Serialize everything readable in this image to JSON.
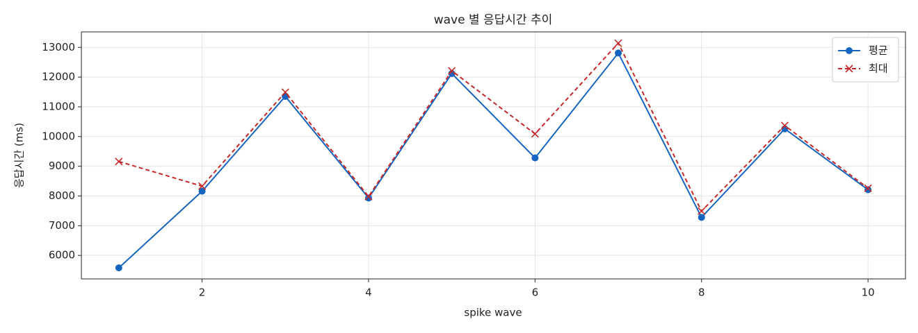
{
  "chart_data": {
    "type": "line",
    "title": "wave 별 응답시간 추이",
    "x_label": "spike wave",
    "y_label": "응답시간 (ms)",
    "x": [
      1,
      2,
      3,
      4,
      5,
      6,
      7,
      8,
      9,
      10
    ],
    "series": [
      {
        "name": "평균",
        "color": "#1565c0",
        "marker": "circle",
        "dash": false,
        "values": [
          5580,
          8160,
          11350,
          7930,
          12120,
          9280,
          12810,
          7280,
          10260,
          8210
        ]
      },
      {
        "name": "최대",
        "color": "#c62828",
        "marker": "x",
        "dash": true,
        "values": [
          9160,
          8330,
          11490,
          7980,
          12210,
          10090,
          13140,
          7490,
          10370,
          8260
        ]
      }
    ],
    "xlim": [
      0.55,
      10.45
    ],
    "xticks": [
      2,
      4,
      6,
      8,
      10
    ],
    "ylim": [
      5210,
      13520
    ],
    "yticks": [
      6000,
      7000,
      8000,
      9000,
      10000,
      11000,
      12000,
      13000
    ],
    "grid": true,
    "legend": "upper right"
  }
}
